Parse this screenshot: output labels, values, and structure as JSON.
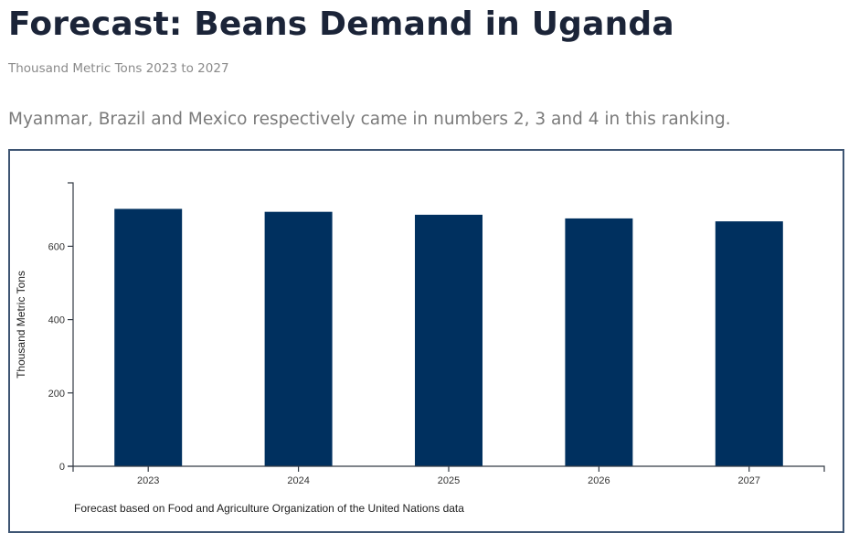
{
  "header": {
    "title": "Forecast: Beans Demand in Uganda",
    "subtitle": "Thousand Metric Tons 2023 to 2027",
    "description": "Myanmar, Brazil and Mexico respectively came in numbers 2, 3 and 4 in this ranking."
  },
  "colors": {
    "bar": "#00305f",
    "panel_border": "#3e5573",
    "title": "#1b2438"
  },
  "chart_data": {
    "type": "bar",
    "title": "Forecast: Beans Demand in Uganda",
    "subtitle": "Thousand Metric Tons 2023 to 2027",
    "categories": [
      "2023",
      "2024",
      "2025",
      "2026",
      "2027"
    ],
    "values": [
      702,
      694,
      686,
      676,
      668
    ],
    "xlabel": "",
    "ylabel": "Thousand Metric Tons",
    "ylim": [
      0,
      773
    ],
    "yticks": [
      0,
      200,
      400,
      600
    ],
    "grid": false,
    "legend": "none",
    "source_note": "Forecast based on Food and Agriculture Organization of the United Nations data"
  }
}
